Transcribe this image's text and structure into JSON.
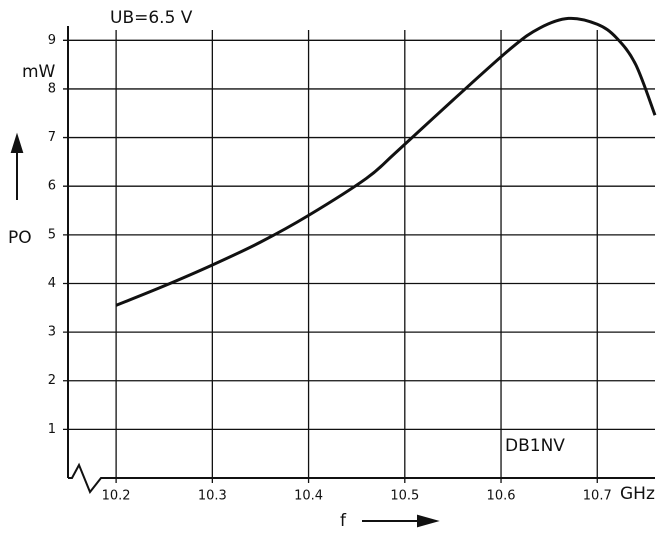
{
  "chart_data": {
    "type": "line",
    "title": "UB=6.5 V",
    "y_label": "PO",
    "y_unit": "mW",
    "x_label": "f",
    "x_unit": "GHz",
    "annotation": "DB1NV",
    "x": [
      10.2,
      10.25,
      10.3,
      10.35,
      10.4,
      10.46,
      10.49,
      10.55,
      10.61,
      10.64,
      10.67,
      10.7,
      10.72,
      10.74,
      10.76
    ],
    "series": [
      {
        "color": "#111111",
        "values": [
          3.55,
          3.95,
          4.38,
          4.85,
          5.4,
          6.16,
          6.68,
          7.77,
          8.83,
          9.25,
          9.45,
          9.33,
          9.05,
          8.5,
          7.46
        ]
      }
    ],
    "xlim": [
      10.15,
      10.76
    ],
    "xticks": [
      10.2,
      10.3,
      10.4,
      10.5,
      10.6,
      10.7
    ],
    "ylim": [
      0,
      9.5
    ],
    "yticks": [
      1,
      2,
      3,
      4,
      5,
      6,
      7,
      8,
      9
    ],
    "grid": true
  }
}
